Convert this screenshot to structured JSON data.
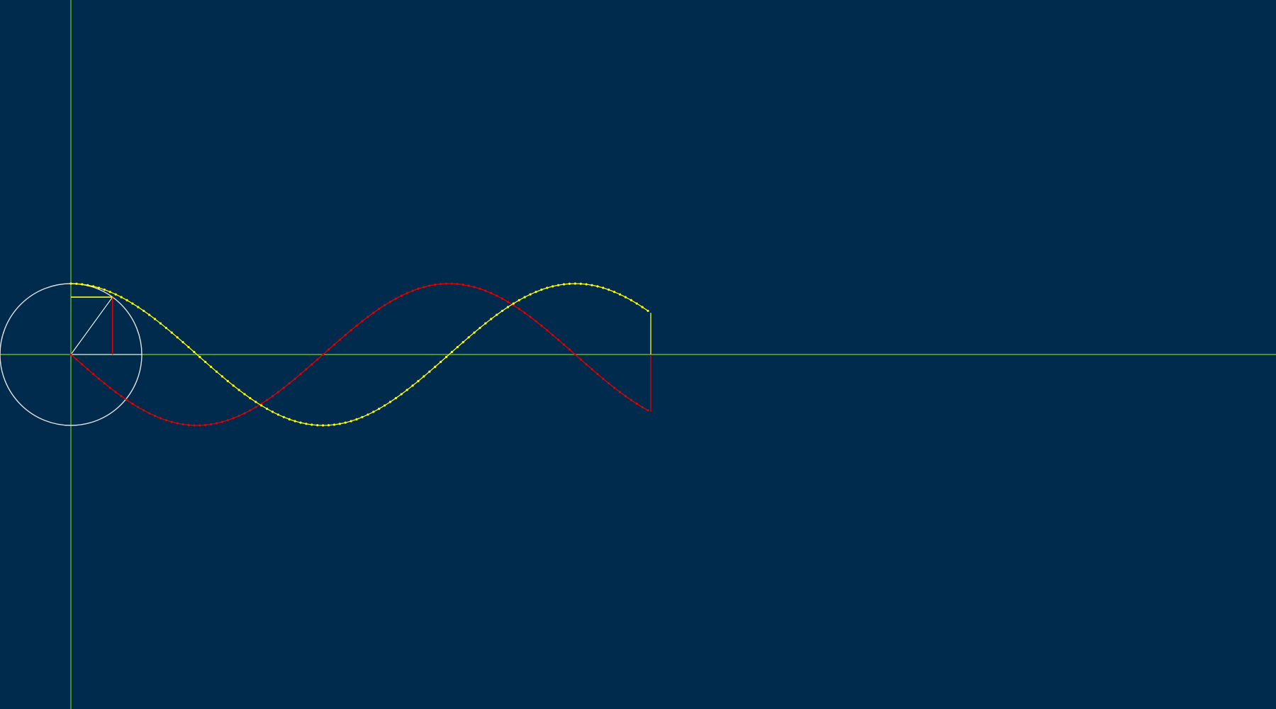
{
  "diagram": {
    "unit_circle": {
      "radius": 1,
      "current_angle_deg": 54
    },
    "curves": [
      {
        "name": "sine",
        "color": "#e00000",
        "phase_deg_at_start": 180,
        "samples_per_unit": 0.1
      },
      {
        "name": "cosine",
        "color": "#ffff00",
        "phase_deg_at_start": 90,
        "samples_per_unit": 0.1
      }
    ],
    "colors": {
      "background": "#002b4d",
      "axes": "#6fd11a",
      "circle": "#e0e0e0",
      "radius_line": "#ffffff",
      "sine_segment": "#e00000",
      "cosine_segment": "#ffff00"
    },
    "sweep_end_deg": 414,
    "sweep_start_deg": 0
  }
}
